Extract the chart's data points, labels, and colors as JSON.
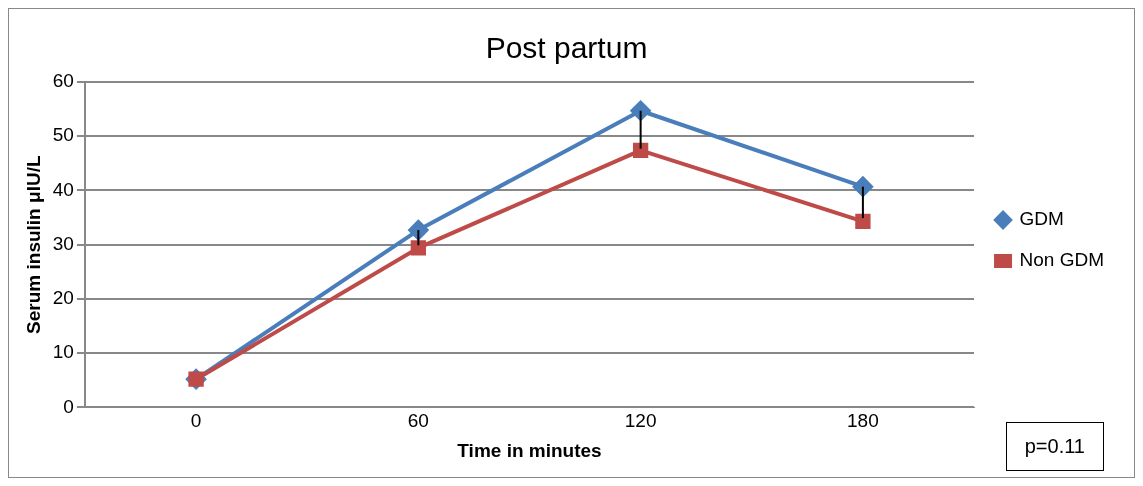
{
  "chart_data": {
    "type": "line",
    "title": "Post partum",
    "xlabel": "Time in minutes",
    "ylabel": "Serum insulin μIU/L",
    "categories": [
      "0",
      "60",
      "120",
      "180"
    ],
    "series": [
      {
        "name": "GDM",
        "color": "#4a7ebb",
        "values": [
          5.2,
          32.7,
          54.7,
          40.7
        ],
        "errors": [
          null,
          [
            29.9,
            32.7
          ],
          [
            47.7,
            54.7
          ],
          [
            34.9,
            40.7
          ]
        ],
        "marker": "diamond"
      },
      {
        "name": "Non GDM",
        "color": "#be4b48",
        "values": [
          5.2,
          29.4,
          47.4,
          34.3
        ],
        "marker": "square"
      }
    ],
    "ylim": [
      0,
      60
    ],
    "yticks": [
      0,
      10,
      20,
      30,
      40,
      50,
      60
    ],
    "grid": "y",
    "legend": "right",
    "line_style": "solid",
    "annotations": [
      "p=0.11"
    ]
  }
}
